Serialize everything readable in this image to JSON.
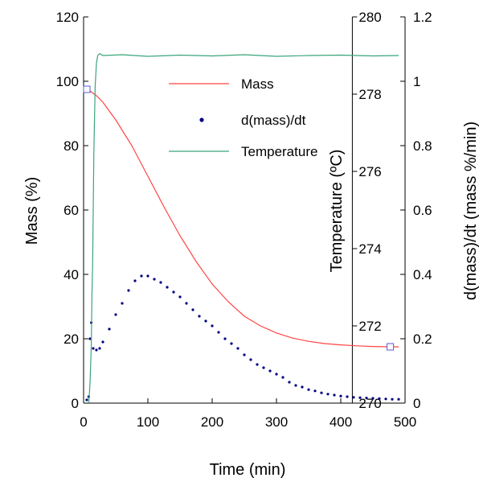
{
  "chart_data": {
    "type": "line",
    "title": "",
    "xlabel": "Time (min)",
    "ylabel_left": "Mass (%)",
    "ylabel_mid": "Temperature (ºC)",
    "ylabel_right": "d(mass)/dt (mass %/min)",
    "xlim": [
      0,
      500
    ],
    "ylim_left": [
      0,
      120
    ],
    "ylim_mid": [
      270,
      280
    ],
    "ylim_right": [
      0,
      1.2
    ],
    "x_ticks": [
      "0",
      "100",
      "200",
      "300",
      "400",
      "500"
    ],
    "y_left_ticks": [
      "0",
      "20",
      "40",
      "60",
      "80",
      "100",
      "120"
    ],
    "y_mid_ticks": [
      "270",
      "272",
      "274",
      "276",
      "278",
      "280"
    ],
    "y_right_ticks": [
      "0",
      "0.2",
      "0.4",
      "0.6",
      "0.8",
      "1",
      "1.2"
    ],
    "grid": false,
    "legend_position": "upper-middle",
    "series": [
      {
        "name": "Mass",
        "axis": "left",
        "color": "#ff4444",
        "x": [
          0,
          5,
          10,
          20,
          30,
          50,
          75,
          100,
          125,
          150,
          175,
          200,
          225,
          250,
          275,
          300,
          325,
          350,
          375,
          400,
          425,
          450,
          475,
          490
        ],
        "y": [
          98.5,
          97.8,
          97,
          95.5,
          93.5,
          88,
          80,
          70.5,
          61,
          52,
          44,
          37,
          31.5,
          27,
          24,
          21.8,
          20.2,
          19.2,
          18.5,
          18.1,
          17.8,
          17.6,
          17.5,
          17.5
        ]
      },
      {
        "name": "d(mass)/dt",
        "axis": "right",
        "color": "#000080",
        "x": [
          5,
          8,
          10,
          12,
          15,
          20,
          25,
          30,
          40,
          50,
          60,
          70,
          80,
          90,
          100,
          110,
          120,
          130,
          140,
          150,
          160,
          170,
          180,
          190,
          200,
          210,
          220,
          230,
          240,
          250,
          260,
          270,
          280,
          290,
          300,
          310,
          320,
          330,
          340,
          350,
          360,
          370,
          380,
          390,
          400,
          410,
          420,
          430,
          440,
          450,
          460,
          470,
          480,
          490
        ],
        "y": [
          0.01,
          0.02,
          0.2,
          0.25,
          0.17,
          0.165,
          0.17,
          0.19,
          0.23,
          0.275,
          0.31,
          0.35,
          0.38,
          0.395,
          0.395,
          0.385,
          0.375,
          0.36,
          0.345,
          0.33,
          0.31,
          0.29,
          0.27,
          0.255,
          0.24,
          0.22,
          0.2,
          0.185,
          0.17,
          0.15,
          0.135,
          0.12,
          0.11,
          0.1,
          0.09,
          0.08,
          0.065,
          0.055,
          0.05,
          0.042,
          0.038,
          0.032,
          0.028,
          0.025,
          0.022,
          0.02,
          0.018,
          0.017,
          0.016,
          0.015,
          0.014,
          0.013,
          0.012,
          0.012
        ]
      },
      {
        "name": "Temperature",
        "axis": "mid",
        "color": "#3aa57a",
        "x": [
          8,
          10,
          12,
          13,
          14,
          16,
          18,
          20,
          22,
          25,
          30,
          60,
          100,
          150,
          200,
          250,
          300,
          350,
          400,
          450,
          490
        ],
        "y": [
          270,
          270.5,
          271.5,
          272.8,
          273.5,
          276.5,
          278.2,
          278.8,
          279,
          279.05,
          279,
          279.02,
          278.98,
          279.01,
          278.99,
          279.02,
          278.98,
          279,
          279.01,
          278.99,
          279
        ]
      }
    ],
    "markers": [
      {
        "name": "start-marker",
        "series": "Mass",
        "x": 5,
        "y": 97.5
      },
      {
        "name": "end-marker",
        "series": "Mass",
        "x": 477,
        "y": 17.5
      }
    ]
  }
}
